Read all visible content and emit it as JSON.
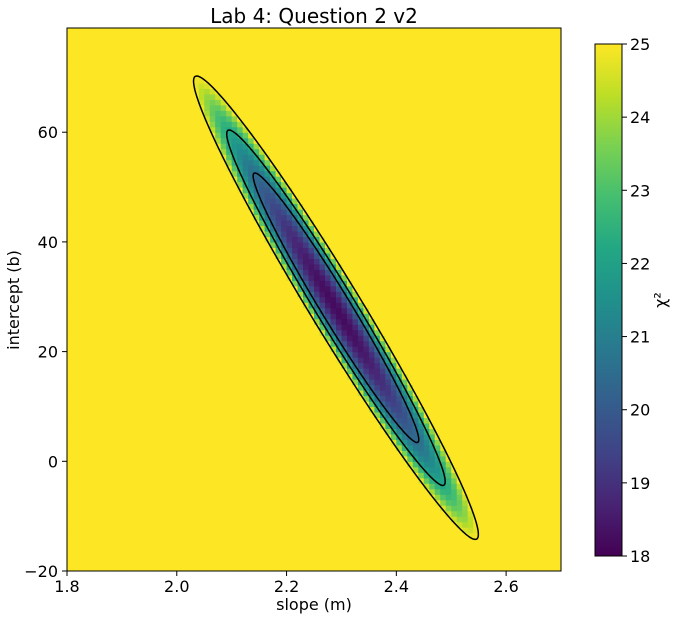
{
  "chart_data": {
    "type": "heatmap",
    "title": "Lab 4: Question 2 v2",
    "xlabel": "slope (m)",
    "ylabel": "intercept (b)",
    "xlim": [
      1.8,
      2.7
    ],
    "ylim": [
      -20,
      79
    ],
    "x_ticks": [
      1.8,
      2.0,
      2.2,
      2.4,
      2.6
    ],
    "y_ticks": [
      -20,
      0,
      20,
      40,
      60
    ],
    "x_tick_labels": [
      "1.8",
      "2.0",
      "2.2",
      "2.4",
      "2.6"
    ],
    "y_tick_labels": [
      "−20",
      "0",
      "20",
      "40",
      "60"
    ],
    "colormap": "viridis",
    "colorbar": {
      "label": "χ²",
      "range": [
        18,
        25
      ],
      "ticks": [
        18,
        19,
        20,
        21,
        22,
        23,
        24,
        25
      ],
      "tick_labels": [
        "18",
        "19",
        "20",
        "21",
        "22",
        "23",
        "24",
        "25"
      ]
    },
    "chi2_model": {
      "min": 18.2,
      "best_fit": {
        "m": 2.29,
        "b": 28.0
      },
      "correlation": -0.978,
      "sigma_m": 0.0995,
      "sigma_b": 16.2
    },
    "contour_levels": [
      20.5,
      22.2,
      25.0
    ],
    "grid_cells": {
      "nx": 90,
      "ny": 99
    },
    "grid": false,
    "contour_color": "#000000"
  }
}
